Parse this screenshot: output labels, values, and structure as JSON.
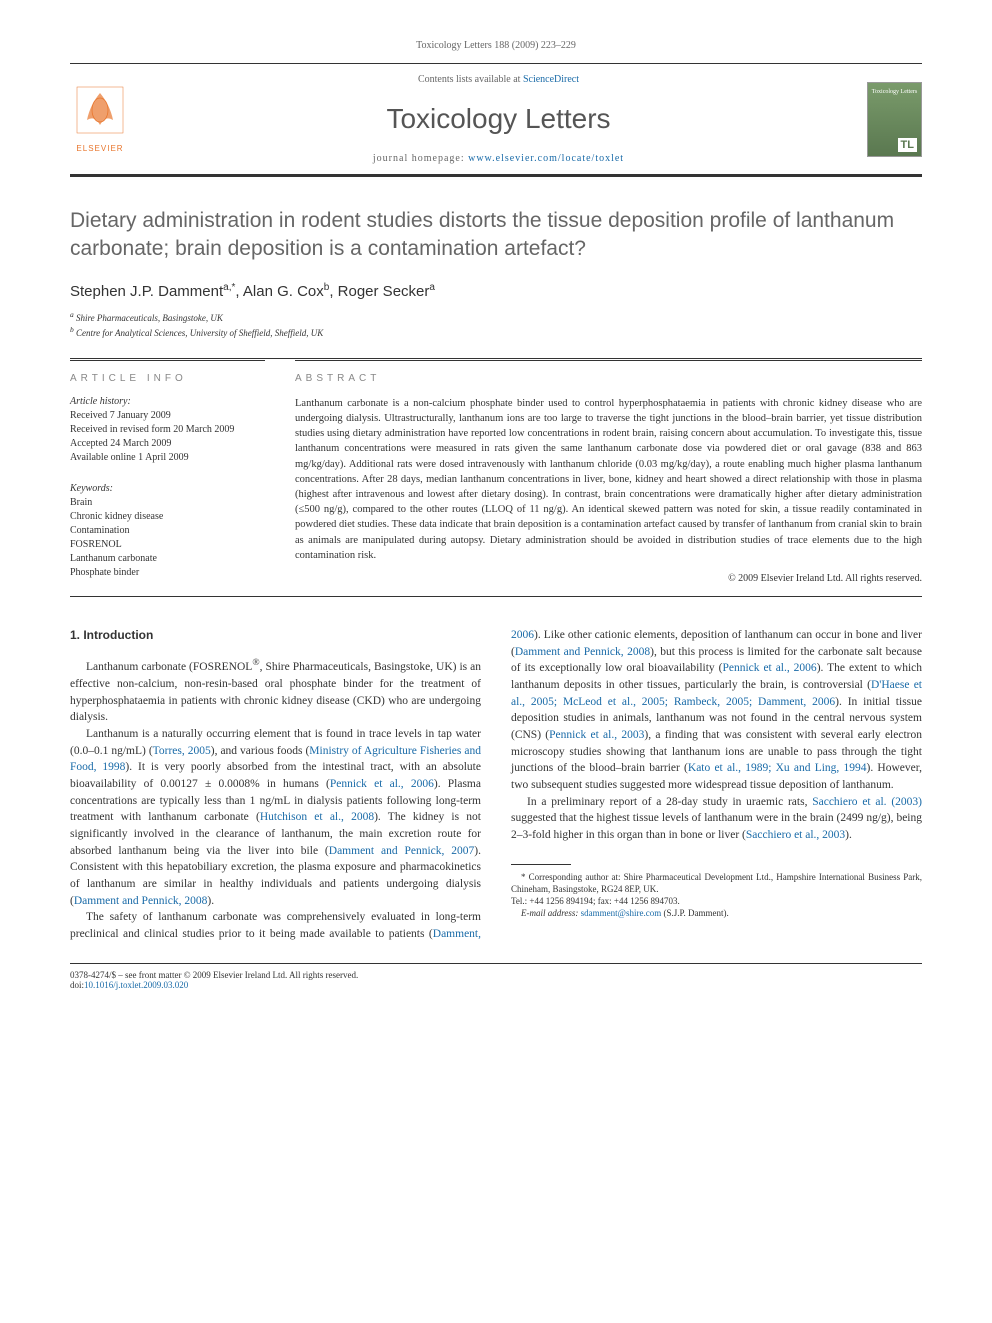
{
  "journal_reference": "Toxicology Letters 188 (2009) 223–229",
  "header": {
    "elsevier_label": "ELSEVIER",
    "contents_text": "Contents lists available at ",
    "contents_link": "ScienceDirect",
    "journal_name": "Toxicology Letters",
    "homepage_text": "journal homepage: ",
    "homepage_url": "www.elsevier.com/locate/toxlet",
    "cover_title": "Toxicology Letters",
    "cover_badge": "TL"
  },
  "article": {
    "title": "Dietary administration in rodent studies distorts the tissue deposition profile of lanthanum carbonate; brain deposition is a contamination artefact?",
    "authors_html": "Stephen J.P. Damment<span class='sup'>a,*</span>, Alan G. Cox<span class='sup'>b</span>, Roger Secker<span class='sup'>a</span>",
    "affiliations": [
      "a Shire Pharmaceuticals, Basingstoke, UK",
      "b Centre for Analytical Sciences, University of Sheffield, Sheffield, UK"
    ]
  },
  "info": {
    "section_label": "ARTICLE INFO",
    "history_label": "Article history:",
    "history": [
      "Received 7 January 2009",
      "Received in revised form 20 March 2009",
      "Accepted 24 March 2009",
      "Available online 1 April 2009"
    ],
    "keywords_label": "Keywords:",
    "keywords": [
      "Brain",
      "Chronic kidney disease",
      "Contamination",
      "FOSRENOL",
      "Lanthanum carbonate",
      "Phosphate binder"
    ]
  },
  "abstract": {
    "section_label": "ABSTRACT",
    "text": "Lanthanum carbonate is a non-calcium phosphate binder used to control hyperphosphataemia in patients with chronic kidney disease who are undergoing dialysis. Ultrastructurally, lanthanum ions are too large to traverse the tight junctions in the blood–brain barrier, yet tissue distribution studies using dietary administration have reported low concentrations in rodent brain, raising concern about accumulation. To investigate this, tissue lanthanum concentrations were measured in rats given the same lanthanum carbonate dose via powdered diet or oral gavage (838 and 863 mg/kg/day). Additional rats were dosed intravenously with lanthanum chloride (0.03 mg/kg/day), a route enabling much higher plasma lanthanum concentrations. After 28 days, median lanthanum concentrations in liver, bone, kidney and heart showed a direct relationship with those in plasma (highest after intravenous and lowest after dietary dosing). In contrast, brain concentrations were dramatically higher after dietary administration (≤500 ng/g), compared to the other routes (LLOQ of 11 ng/g). An identical skewed pattern was noted for skin, a tissue readily contaminated in powdered diet studies. These data indicate that brain deposition is a contamination artefact caused by transfer of lanthanum from cranial skin to brain as animals are manipulated during autopsy. Dietary administration should be avoided in distribution studies of trace elements due to the high contamination risk.",
    "copyright": "© 2009 Elsevier Ireland Ltd. All rights reserved."
  },
  "body": {
    "intro_heading": "1. Introduction",
    "paragraphs": [
      "Lanthanum carbonate (FOSRENOL<sup>®</sup>, Shire Pharmaceuticals, Basingstoke, UK) is an effective non-calcium, non-resin-based oral phosphate binder for the treatment of hyperphosphataemia in patients with chronic kidney disease (CKD) who are undergoing dialysis.",
      "Lanthanum is a naturally occurring element that is found in trace levels in tap water (0.0–0.1 ng/mL) (<a href='#'>Torres, 2005</a>), and various foods (<a href='#'>Ministry of Agriculture Fisheries and Food, 1998</a>). It is very poorly absorbed from the intestinal tract, with an absolute bioavailability of 0.00127 ± 0.0008% in humans (<a href='#'>Pennick et al., 2006</a>). Plasma concentrations are typically less than 1 ng/mL in dialysis patients following long-term treatment with lanthanum carbonate (<a href='#'>Hutchison et al., 2008</a>). The kidney is not significantly involved in the clearance of lanthanum, the main excretion route for absorbed lanthanum being via the liver into bile (<a href='#'>Damment and Pennick, 2007</a>). Consistent with this hepatobiliary excretion, the plasma exposure and pharmacokinetics of lanthanum are similar in healthy individuals and patients undergoing dialysis (<a href='#'>Damment and Pennick, 2008</a>).",
      "The safety of lanthanum carbonate was comprehensively evaluated in long-term preclinical and clinical studies prior to it being made available to patients (<a href='#'>Damment, 2006</a>). Like other cationic elements, deposition of lanthanum can occur in bone and liver (<a href='#'>Damment and Pennick, 2008</a>), but this process is limited for the carbonate salt because of its exceptionally low oral bioavailability (<a href='#'>Pennick et al., 2006</a>). The extent to which lanthanum deposits in other tissues, particularly the brain, is controversial (<a href='#'>D'Haese et al., 2005; McLeod et al., 2005; Rambeck, 2005; Damment, 2006</a>). In initial tissue deposition studies in animals, lanthanum was not found in the central nervous system (CNS) (<a href='#'>Pennick et al., 2003</a>), a finding that was consistent with several early electron microscopy studies showing that lanthanum ions are unable to pass through the tight junctions of the blood–brain barrier (<a href='#'>Kato et al., 1989; Xu and Ling, 1994</a>). However, two subsequent studies suggested more widespread tissue deposition of lanthanum.",
      "In a preliminary report of a 28-day study in uraemic rats, <a href='#'>Sacchiero et al. (2003)</a> suggested that the highest tissue levels of lanthanum were in the brain (2499 ng/g), being 2–3-fold higher in this organ than in bone or liver (<a href='#'>Sacchiero et al., 2003</a>)."
    ]
  },
  "footnote": {
    "corr_label": "* Corresponding author at: Shire Pharmaceutical Development Ltd., Hampshire International Business Park, Chineham, Basingstoke, RG24 8EP, UK.",
    "tel": "Tel.: +44 1256 894194; fax: +44 1256 894703.",
    "email_label": "E-mail address: ",
    "email": "sdamment@shire.com",
    "email_suffix": " (S.J.P. Damment)."
  },
  "bottom": {
    "issn_line": "0378-4274/$ – see front matter © 2009 Elsevier Ireland Ltd. All rights reserved.",
    "doi_label": "doi:",
    "doi": "10.1016/j.toxlet.2009.03.020"
  }
}
